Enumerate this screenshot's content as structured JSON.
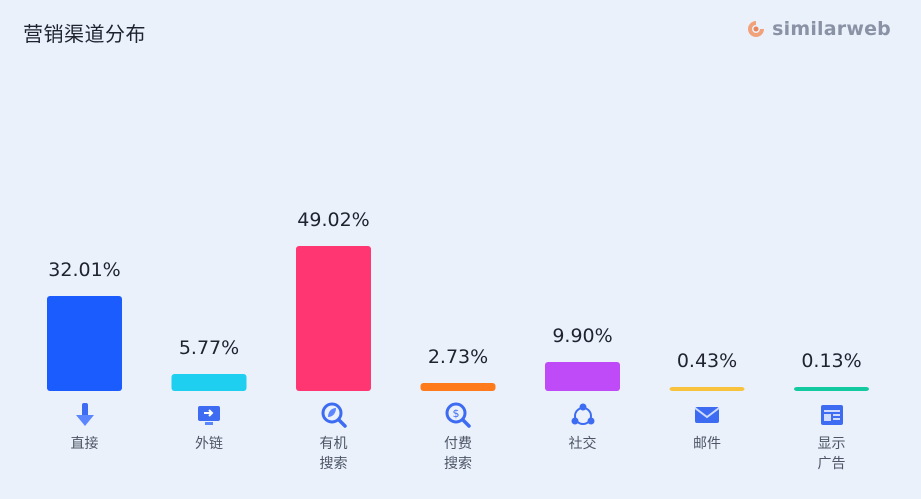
{
  "header": {
    "title": "营销渠道分布",
    "brand": "similarweb",
    "brand_icon": "similarweb-logo"
  },
  "chart_data": {
    "type": "bar",
    "categories": [
      "直接",
      "外链",
      "有机\n搜索",
      "付费\n搜索",
      "社交",
      "邮件",
      "显示\n广告"
    ],
    "values": [
      32.01,
      5.77,
      49.02,
      2.73,
      9.9,
      0.43,
      0.13
    ],
    "value_labels": [
      "32.01%",
      "5.77%",
      "49.02%",
      "2.73%",
      "9.90%",
      "0.43%",
      "0.13%"
    ],
    "colors": [
      "#1b5cff",
      "#1ecff0",
      "#ff3671",
      "#ff7a1a",
      "#bf4bf8",
      "#f9c23c",
      "#12c9a0"
    ],
    "icons": [
      "direct-icon",
      "referral-icon",
      "organic-search-icon",
      "paid-search-icon",
      "social-icon",
      "mail-icon",
      "display-ads-icon"
    ],
    "title": "营销渠道分布",
    "ylim": [
      0,
      49.02
    ],
    "grid": false,
    "legend": "none"
  }
}
